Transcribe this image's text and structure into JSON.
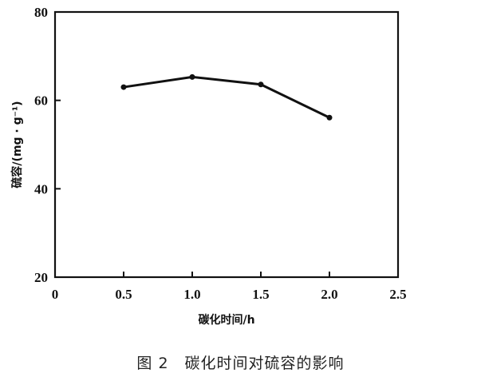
{
  "caption": "图 2　碳化时间对硫容的影响",
  "chart_data": {
    "type": "line",
    "title": "",
    "xlabel": "碳化时间/h",
    "ylabel": "硫容/(mg · g⁻¹)",
    "xlim": [
      0,
      2.5
    ],
    "ylim": [
      20,
      80
    ],
    "xticks": [
      "0",
      "0.5",
      "1.0",
      "1.5",
      "2.0",
      "2.5"
    ],
    "yticks": [
      "20",
      "40",
      "60",
      "80"
    ],
    "grid": false,
    "series": [
      {
        "x": [
          0.5,
          1.0,
          1.5,
          2.0
        ],
        "y": [
          63.0,
          65.3,
          63.6,
          56.1
        ],
        "color": "#111111"
      }
    ]
  }
}
